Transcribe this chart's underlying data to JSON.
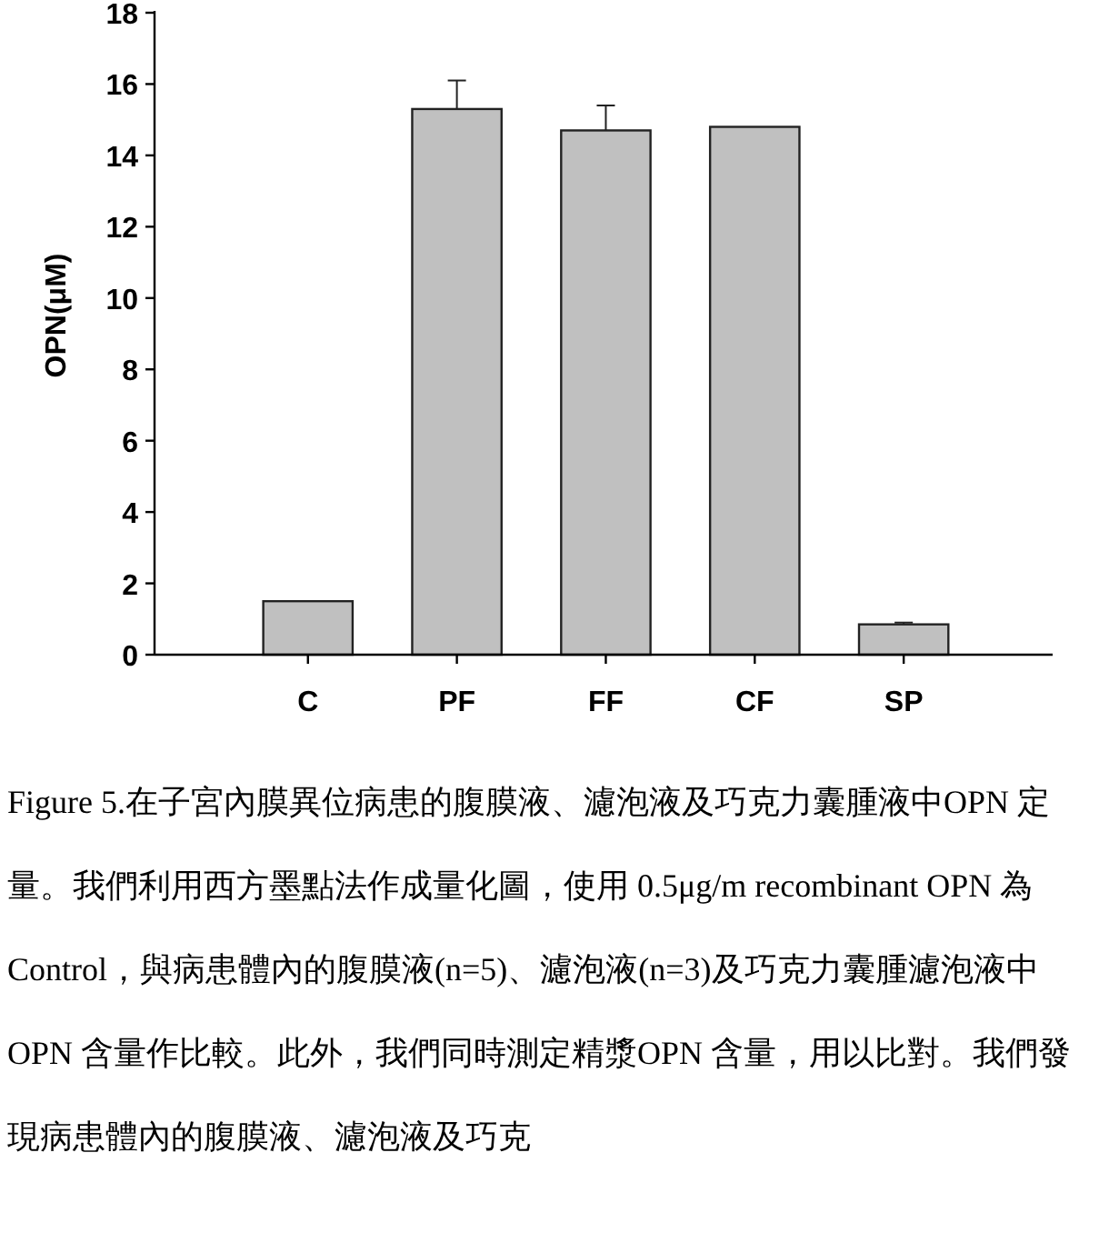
{
  "chart_data": {
    "type": "bar",
    "ylabel": "OPN(μM)",
    "categories": [
      "C",
      "PF",
      "FF",
      "CF",
      "SP"
    ],
    "values": [
      1.5,
      15.3,
      14.7,
      14.8,
      0.85
    ],
    "errors": [
      null,
      0.8,
      0.7,
      null,
      0.05
    ],
    "color": "#c0c0c0",
    "ylim": [
      0,
      18
    ],
    "yticks": [
      0,
      2,
      4,
      6,
      8,
      10,
      12,
      14,
      16,
      18
    ],
    "grid": false,
    "annotations": [
      "Figure 5.在子宮內膜異位病患的腹膜液、濾泡液及巧克力囊腫液中OPN 定量。我們利用西方墨點法作成量化圖，使用 0.5μg/m recombinant OPN 為 Control，與病患體內的腹膜液(n=5)、濾泡液(n=3)及巧克力囊腫濾泡液中 OPN 含量作比較。此外，我們同時測定精漿OPN 含量，用以比對。我們發現病患體內的腹膜液、濾泡液及巧克"
    ]
  }
}
